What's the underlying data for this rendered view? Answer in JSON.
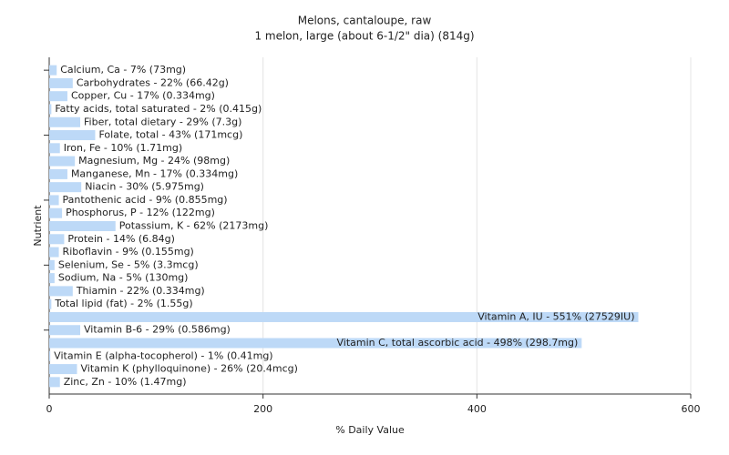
{
  "chart_data": {
    "type": "hbar",
    "title": "Melons, cantaloupe, raw",
    "subtitle": "1 melon, large (about 6-1/2\" dia) (814g)",
    "x_label": "% Daily Value",
    "y_label": "Nutrient",
    "color": "#bdd9f7",
    "values": [
      7,
      22,
      17,
      2,
      29,
      43,
      10,
      24,
      17,
      30,
      9,
      12,
      62,
      14,
      9,
      5,
      5,
      22,
      2,
      551,
      29,
      498,
      1,
      26,
      10
    ],
    "value_labels": [
      "Calcium, Ca - 7% (73mg)",
      "Carbohydrates - 22% (66.42g)",
      "Copper, Cu - 17% (0.334mg)",
      "Fatty acids, total saturated - 2% (0.415g)",
      "Fiber, total dietary - 29% (7.3g)",
      "Folate, total - 43% (171mcg)",
      "Iron, Fe - 10% (1.71mg)",
      "Magnesium, Mg - 24% (98mg)",
      "Manganese, Mn - 17% (0.334mg)",
      "Niacin - 30% (5.975mg)",
      "Pantothenic acid - 9% (0.855mg)",
      "Phosphorus, P - 12% (122mg)",
      "Potassium, K - 62% (2173mg)",
      "Protein - 14% (6.84g)",
      "Riboflavin - 9% (0.155mg)",
      "Selenium, Se - 5% (3.3mcg)",
      "Sodium, Na - 5% (130mg)",
      "Thiamin - 22% (0.334mg)",
      "Total lipid (fat) - 2% (1.55g)",
      "Vitamin A, IU - 551% (27529IU)",
      "Vitamin B-6 - 29% (0.586mg)",
      "Vitamin C, total ascorbic acid - 498% (298.7mg)",
      "Vitamin E (alpha-tocopherol) - 1% (0.41mg)",
      "Vitamin K (phylloquinone) - 26% (20.4mcg)",
      "Zinc, Zn - 10% (1.47mg)"
    ],
    "xlim": [
      0,
      600
    ],
    "xticks": [
      0,
      200,
      400,
      600
    ],
    "grid": true
  }
}
